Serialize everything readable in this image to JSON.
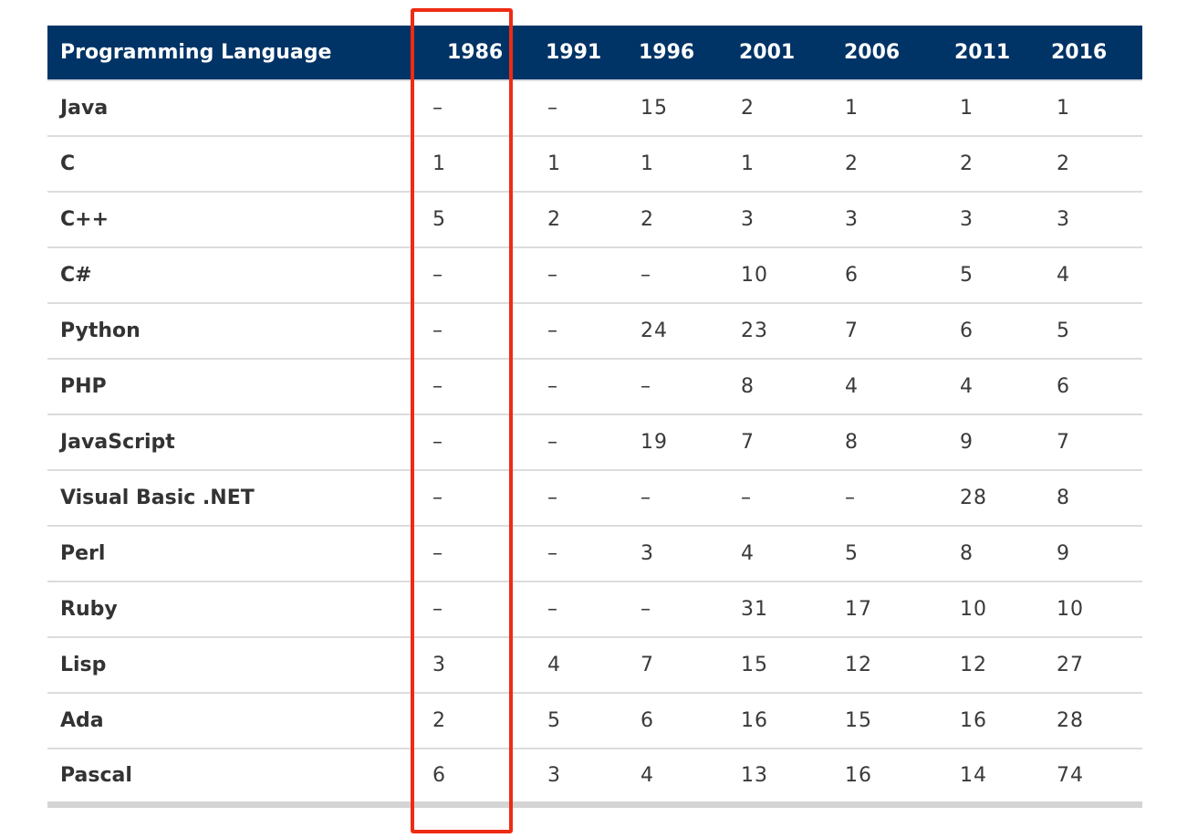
{
  "table": {
    "headers": [
      "Programming Language",
      "1986",
      "1991",
      "1996",
      "2001",
      "2006",
      "2011",
      "2016"
    ],
    "rows": [
      {
        "language": "Java",
        "ranks": [
          "–",
          "–",
          "15",
          "2",
          "1",
          "1",
          "1"
        ]
      },
      {
        "language": "C",
        "ranks": [
          "1",
          "1",
          "1",
          "1",
          "2",
          "2",
          "2"
        ]
      },
      {
        "language": "C++",
        "ranks": [
          "5",
          "2",
          "2",
          "3",
          "3",
          "3",
          "3"
        ]
      },
      {
        "language": "C#",
        "ranks": [
          "–",
          "–",
          "–",
          "10",
          "6",
          "5",
          "4"
        ]
      },
      {
        "language": "Python",
        "ranks": [
          "–",
          "–",
          "24",
          "23",
          "7",
          "6",
          "5"
        ]
      },
      {
        "language": "PHP",
        "ranks": [
          "–",
          "–",
          "–",
          "8",
          "4",
          "4",
          "6"
        ]
      },
      {
        "language": "JavaScript",
        "ranks": [
          "–",
          "–",
          "19",
          "7",
          "8",
          "9",
          "7"
        ]
      },
      {
        "language": "Visual Basic .NET",
        "ranks": [
          "–",
          "–",
          "–",
          "–",
          "–",
          "28",
          "8"
        ]
      },
      {
        "language": "Perl",
        "ranks": [
          "–",
          "–",
          "3",
          "4",
          "5",
          "8",
          "9"
        ]
      },
      {
        "language": "Ruby",
        "ranks": [
          "–",
          "–",
          "–",
          "31",
          "17",
          "10",
          "10"
        ]
      },
      {
        "language": "Lisp",
        "ranks": [
          "3",
          "4",
          "7",
          "15",
          "12",
          "12",
          "27"
        ]
      },
      {
        "language": "Ada",
        "ranks": [
          "2",
          "5",
          "6",
          "16",
          "15",
          "16",
          "28"
        ]
      },
      {
        "language": "Pascal",
        "ranks": [
          "6",
          "3",
          "4",
          "13",
          "16",
          "14",
          "74"
        ]
      }
    ]
  },
  "highlight": {
    "column": "1986",
    "color": "#ee2b13"
  },
  "colors": {
    "header_bg": "#003366",
    "header_text": "#ffffff",
    "body_text": "#333333",
    "row_divider": "#dcdcdc"
  }
}
